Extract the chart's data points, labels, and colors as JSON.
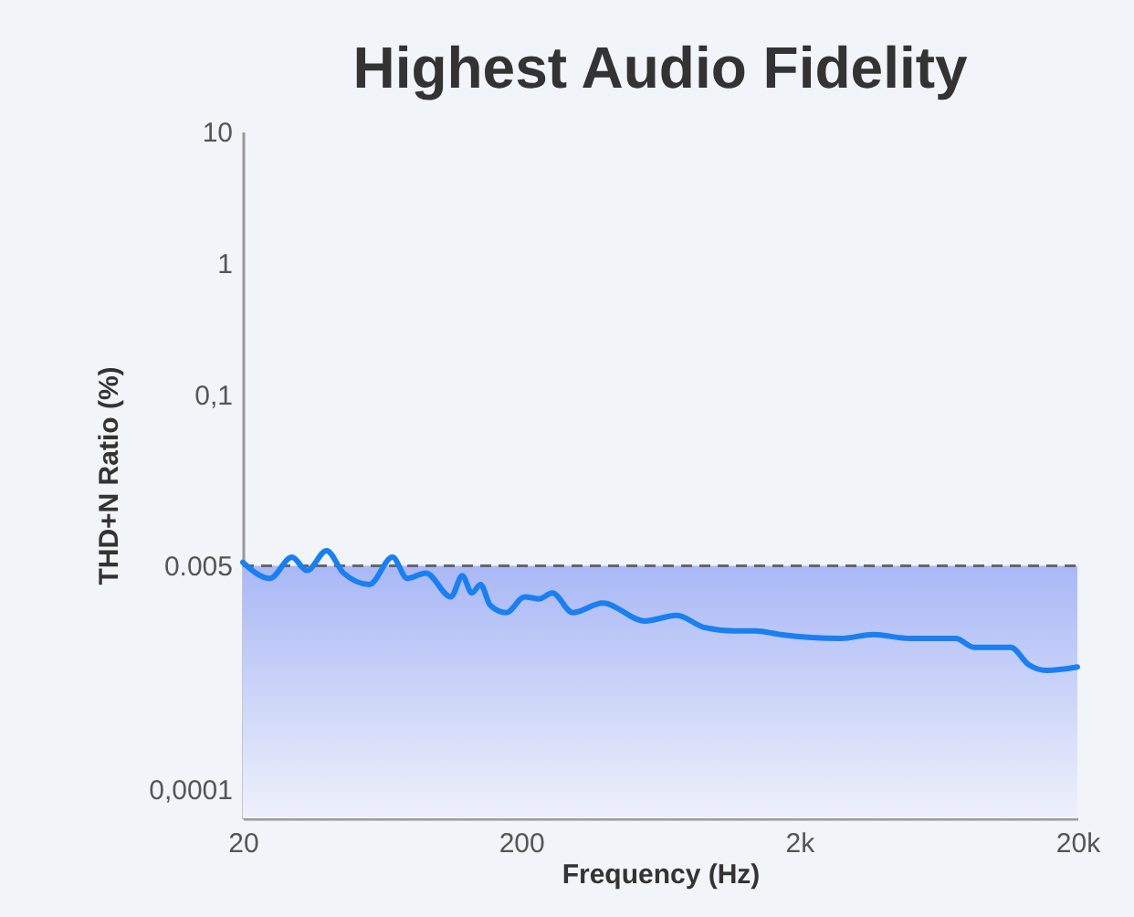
{
  "chart_data": {
    "type": "line",
    "title": "Highest Audio Fidelity",
    "xlabel": "Frequency (Hz)",
    "ylabel": "THD+N Ratio (%)",
    "log": "xy",
    "grid": false,
    "marker": "none",
    "line_style": "solid",
    "xlim": [
      20,
      20000
    ],
    "xticks": [
      20,
      200,
      {
        "value": 2000,
        "label": "2k"
      },
      {
        "value": 20000,
        "label": "20k"
      }
    ],
    "ylim": [
      6e-05,
      10
    ],
    "yticks": [
      10,
      1,
      {
        "value": 0.1,
        "label": "0,1"
      },
      0.005,
      {
        "value": 0.0001,
        "label": "0,0001"
      }
    ],
    "ref_lines": [
      {
        "axis": "y",
        "value": 0.005,
        "color": "#666666",
        "line_style": "dashed"
      }
    ],
    "bands": [
      {
        "axis": "y",
        "from": 6e-05,
        "to": 0.005,
        "color": "#a9b8f6"
      }
    ],
    "series": [
      {
        "color": "#1a7ff0",
        "x": [
          20,
          25,
          30,
          34,
          40,
          46,
          57,
          69,
          78,
          91,
          112,
          123,
          133,
          143,
          155,
          177,
          206,
          232,
          259,
          307,
          393,
          557,
          726,
          910,
          1170,
          1390,
          1710,
          2820,
          3690,
          5000,
          5600,
          7300,
          8500,
          11500,
          13400,
          15500,
          20000
        ],
        "values": [
          0.0053,
          0.004,
          0.0058,
          0.0046,
          0.0065,
          0.0044,
          0.0036,
          0.0058,
          0.004,
          0.0044,
          0.0029,
          0.0042,
          0.0031,
          0.0036,
          0.0025,
          0.0022,
          0.0029,
          0.0028,
          0.0031,
          0.0022,
          0.0026,
          0.0019,
          0.0021,
          0.0017,
          0.0016,
          0.0016,
          0.0015,
          0.0014,
          0.0015,
          0.0014,
          0.0014,
          0.0014,
          0.0012,
          0.0012,
          0.00088,
          0.0008,
          0.00085
        ]
      }
    ]
  }
}
